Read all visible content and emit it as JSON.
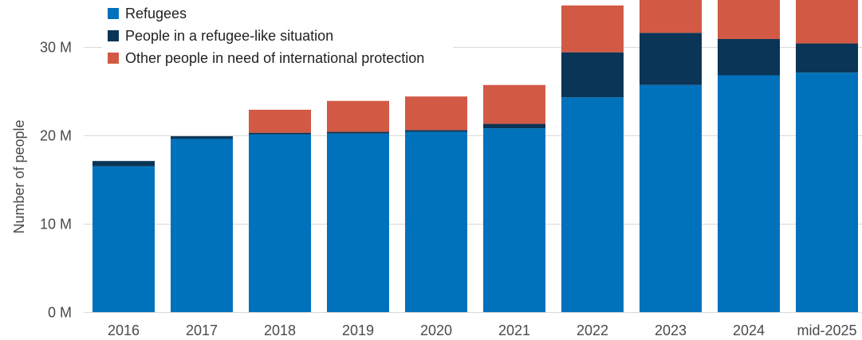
{
  "chart_data": {
    "type": "bar",
    "stacked": true,
    "ylabel": "Number of people",
    "ylim": [
      0,
      35
    ],
    "yticks": [
      0,
      10,
      20,
      30
    ],
    "ytick_labels": [
      "0 M",
      "10 M",
      "20 M",
      "30 M"
    ],
    "unit": "M",
    "categories": [
      "2016",
      "2017",
      "2018",
      "2019",
      "2020",
      "2021",
      "2022",
      "2023",
      "2024",
      "mid-2025"
    ],
    "series": [
      {
        "name": "Refugees",
        "color": "#0072BC",
        "values": [
          16.5,
          19.6,
          20.1,
          20.2,
          20.4,
          20.8,
          24.3,
          25.7,
          26.8,
          27.1
        ]
      },
      {
        "name": "People in a refugee-like situation",
        "color": "#0A3556",
        "values": [
          0.6,
          0.3,
          0.2,
          0.2,
          0.2,
          0.5,
          5.1,
          5.9,
          4.1,
          3.3
        ]
      },
      {
        "name": "Other people in need of international protection",
        "color": "#D25A45",
        "values": [
          0,
          0,
          2.6,
          3.5,
          3.8,
          4.4,
          5.3,
          4.8,
          5.0,
          5.8
        ]
      }
    ],
    "grid": true,
    "legend": "top-left"
  }
}
